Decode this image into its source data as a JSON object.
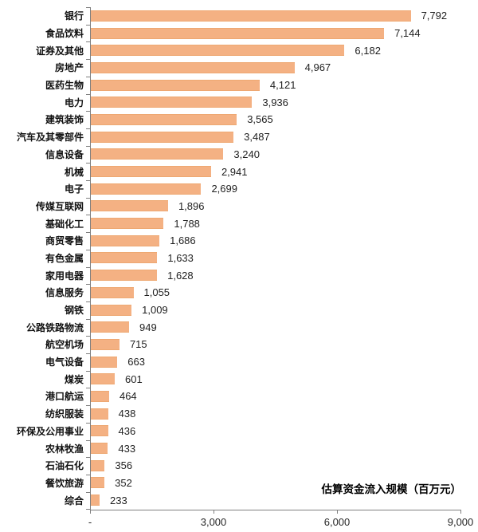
{
  "chart_data": {
    "type": "bar",
    "orientation": "horizontal",
    "title": "",
    "xlabel": "估算资金流入规模（百万元）",
    "ylabel": "",
    "xlim": [
      0,
      9000
    ],
    "grid": false,
    "legend": false,
    "bar_color": "#F4B183",
    "axis_color": "#7f7f7f",
    "categories": [
      "银行",
      "食品饮料",
      "证券及其他",
      "房地产",
      "医药生物",
      "电力",
      "建筑装饰",
      "汽车及其零部件",
      "信息设备",
      "机械",
      "电子",
      "传媒互联网",
      "基础化工",
      "商贸零售",
      "有色金属",
      "家用电器",
      "信息服务",
      "钢铁",
      "公路铁路物流",
      "航空机场",
      "电气设备",
      "煤炭",
      "港口航运",
      "纺织服装",
      "环保及公用事业",
      "农林牧渔",
      "石油石化",
      "餐饮旅游",
      "综合"
    ],
    "values": [
      7792,
      7144,
      6182,
      4967,
      4121,
      3936,
      3565,
      3487,
      3240,
      2941,
      2699,
      1896,
      1788,
      1686,
      1633,
      1628,
      1055,
      1009,
      949,
      715,
      663,
      601,
      464,
      438,
      436,
      433,
      356,
      352,
      233
    ],
    "x_ticks": [
      {
        "value": 0,
        "label": "-"
      },
      {
        "value": 3000,
        "label": "3,000"
      },
      {
        "value": 6000,
        "label": "6,000"
      },
      {
        "value": 9000,
        "label": "9,000"
      }
    ]
  }
}
